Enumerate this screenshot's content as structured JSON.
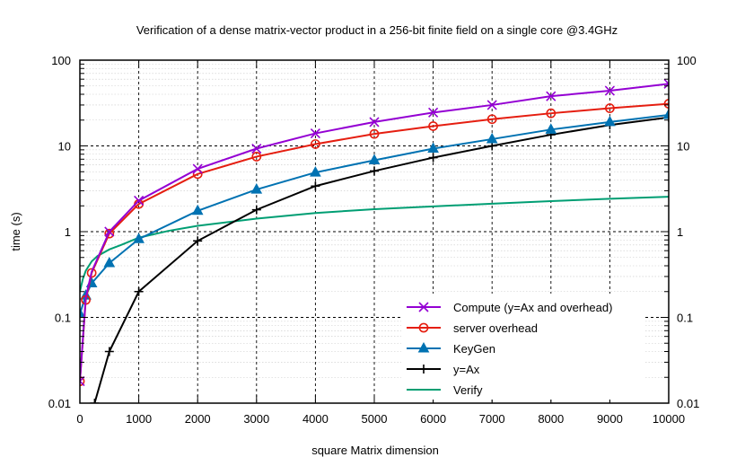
{
  "chart_data": {
    "type": "line",
    "title": "Verification of a dense matrix-vector product in a 256-bit finite field on a single core @3.4GHz",
    "xlabel": "square Matrix dimension",
    "ylabel": "time (s)",
    "xlim": [
      0,
      10000
    ],
    "ylim": [
      0.01,
      100
    ],
    "yscale": "log",
    "grid": true,
    "legend_position": "bottom-right",
    "x_ticks": [
      0,
      1000,
      2000,
      3000,
      4000,
      5000,
      6000,
      7000,
      8000,
      9000,
      10000
    ],
    "y_ticks": [
      0.01,
      0.1,
      1,
      10,
      100
    ],
    "x_tick_labels": [
      "0",
      "1000",
      "2000",
      "3000",
      "4000",
      "5000",
      "6000",
      "7000",
      "8000",
      "9000",
      "10000"
    ],
    "y_tick_labels": [
      "0.01",
      "0.1",
      "1",
      "10",
      "100"
    ],
    "series": [
      {
        "name": "Compute (y=Ax and overhead)",
        "color": "#9400d3",
        "marker": "x",
        "x": [
          0,
          100,
          200,
          500,
          1000,
          2000,
          3000,
          4000,
          5000,
          6000,
          7000,
          8000,
          9000,
          10000
        ],
        "values": [
          0.018,
          0.17,
          0.34,
          1.0,
          2.3,
          5.4,
          9.3,
          14,
          19,
          24.5,
          30,
          38,
          44,
          53
        ]
      },
      {
        "name": "server overhead",
        "color": "#e51e10",
        "marker": "circle",
        "x": [
          0,
          100,
          200,
          500,
          1000,
          2000,
          3000,
          4000,
          5000,
          6000,
          7000,
          8000,
          9000,
          10000
        ],
        "values": [
          0.018,
          0.16,
          0.33,
          0.95,
          2.1,
          4.7,
          7.5,
          10.5,
          13.8,
          17,
          20.5,
          24,
          27.5,
          31
        ]
      },
      {
        "name": "KeyGen",
        "color": "#0072b2",
        "marker": "triangle",
        "x": [
          0,
          100,
          200,
          500,
          1000,
          2000,
          3000,
          4000,
          5000,
          6000,
          7000,
          8000,
          9000,
          10000
        ],
        "values": [
          0.11,
          0.18,
          0.25,
          0.43,
          0.82,
          1.75,
          3.1,
          4.9,
          6.8,
          9.3,
          12,
          15.5,
          19,
          23
        ]
      },
      {
        "name": "y=Ax",
        "color": "#000000",
        "marker": "plus",
        "x": [
          250,
          500,
          1000,
          2000,
          3000,
          4000,
          5000,
          6000,
          7000,
          8000,
          9000,
          10000
        ],
        "values": [
          0.01,
          0.04,
          0.2,
          0.78,
          1.8,
          3.4,
          5.1,
          7.3,
          10,
          13.5,
          17.5,
          21.5
        ]
      },
      {
        "name": "Verify",
        "color": "#009e73",
        "marker": "none",
        "x": [
          0,
          50,
          100,
          200,
          300,
          500,
          700,
          1000,
          1500,
          2000,
          3000,
          4000,
          5000,
          6000,
          7000,
          8000,
          9000,
          10000
        ],
        "values": [
          0.2,
          0.28,
          0.35,
          0.45,
          0.52,
          0.62,
          0.7,
          0.85,
          1.02,
          1.17,
          1.42,
          1.65,
          1.83,
          1.97,
          2.12,
          2.27,
          2.42,
          2.55
        ]
      }
    ]
  }
}
